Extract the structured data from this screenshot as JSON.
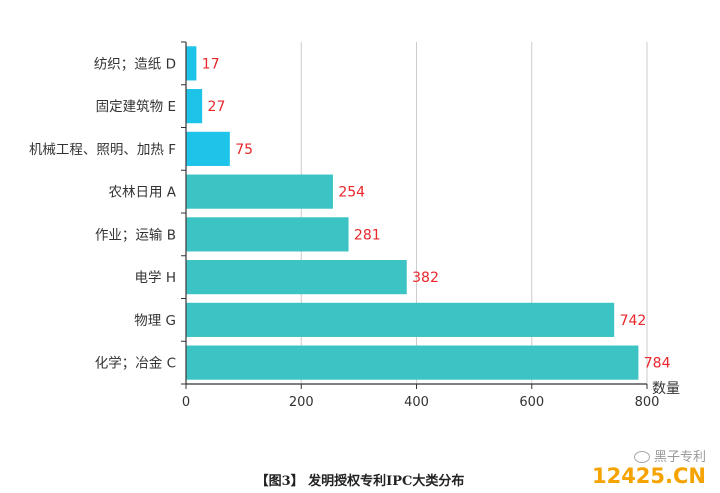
{
  "chart_data": {
    "type": "bar",
    "orientation": "horizontal",
    "categories": [
      "纺织；造纸 D",
      "固定建筑物 E",
      "机械工程、照明、加热 F",
      "农林日用 A",
      "作业；运输 B",
      "电学 H",
      "物理 G",
      "化学；冶金 C"
    ],
    "values": [
      17,
      27,
      75,
      254,
      281,
      382,
      742,
      784
    ],
    "bar_colors": [
      "#1ec3ea",
      "#1ec3ea",
      "#1ec3ea",
      "#3cc4c4",
      "#3cc4c4",
      "#3cc4c4",
      "#3cc4c4",
      "#3cc4c4"
    ],
    "label_color": "#e8262b",
    "xlabel": "数量",
    "xlim": [
      0,
      800
    ],
    "xticks": [
      0,
      200,
      400,
      600,
      800
    ],
    "grid": "vertical"
  },
  "caption": "【图3】 发明授权专利IPC大类分布",
  "watermark": {
    "top": "黑子专利",
    "logo": "12425.CN",
    "icon": "wechat-icon"
  }
}
